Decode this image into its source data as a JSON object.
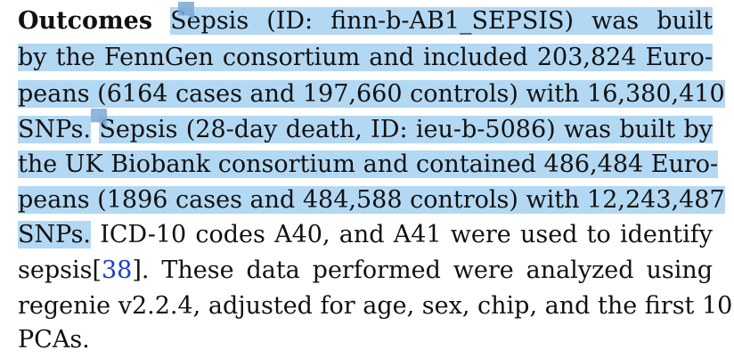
{
  "paragraph": {
    "label": "Outcomes",
    "lines": [
      "Sepsis (ID: finn-b-AB1_SEPSIS) was built",
      "by the FennGen consortium and included 203,824 Euro-",
      "peans (6164 cases and 197,660 controls) with 16,380,410",
      "SNPs.",
      "Sepsis (28-day death, ID: ieu-b-5086) was built by",
      "the UK Biobank consortium and contained 486,484 Euro-",
      "peans (1896 cases and 484,588 controls) with 12,243,487",
      "SNPs.",
      "ICD-10 codes A40, and A41 were used to identify",
      "sepsis[",
      "38",
      "]. These data performed were analyzed using",
      "regenie v2.2.4, adjusted for age, sex, chip, and the first 10",
      "PCAs."
    ]
  },
  "colors": {
    "highlight": "#b3d8f3",
    "citation_link": "#1a3dcc",
    "annotation_marker": "#7aa9d6"
  }
}
